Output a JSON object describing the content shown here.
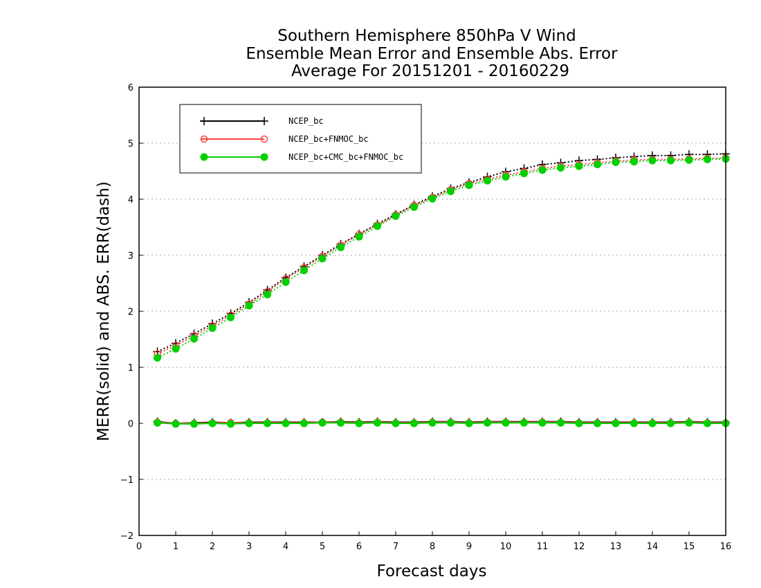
{
  "chart_data": {
    "type": "line",
    "title": [
      "Southern Hemisphere 850hPa V Wind",
      "Ensemble Mean Error and Ensemble Abs. Error",
      "Average For 20151201 - 20160229"
    ],
    "xlabel": "Forecast days",
    "ylabel": "MERR(solid) and ABS. ERR(dash)",
    "xlim": [
      0,
      16
    ],
    "ylim": [
      -2,
      6
    ],
    "xticks": [
      0,
      1,
      2,
      3,
      4,
      5,
      6,
      7,
      8,
      9,
      10,
      11,
      12,
      13,
      14,
      15,
      16
    ],
    "yticks": [
      -2,
      -1,
      0,
      1,
      2,
      3,
      4,
      5,
      6
    ],
    "y_gridlines": [
      -1,
      1,
      2,
      3,
      4,
      5
    ],
    "legend_position": "top-left",
    "x": [
      0.5,
      1,
      1.5,
      2,
      2.5,
      3,
      3.5,
      4,
      4.5,
      5,
      5.5,
      6,
      6.5,
      7,
      7.5,
      8,
      8.5,
      9,
      9.5,
      10,
      10.5,
      11,
      11.5,
      12,
      12.5,
      13,
      13.5,
      14,
      14.5,
      15,
      15.5,
      16
    ],
    "series": [
      {
        "name": "NCEP_bc",
        "color": "#000000",
        "marker": "plus",
        "merr": [
          0.03,
          0.0,
          0.01,
          0.02,
          0.01,
          0.02,
          0.02,
          0.02,
          0.02,
          0.02,
          0.03,
          0.02,
          0.03,
          0.02,
          0.02,
          0.03,
          0.03,
          0.02,
          0.03,
          0.03,
          0.03,
          0.03,
          0.03,
          0.02,
          0.02,
          0.02,
          0.02,
          0.02,
          0.02,
          0.03,
          0.02,
          0.02
        ],
        "abs_err": [
          1.28,
          1.43,
          1.6,
          1.78,
          1.96,
          2.16,
          2.38,
          2.6,
          2.8,
          3.0,
          3.2,
          3.38,
          3.56,
          3.73,
          3.9,
          4.05,
          4.19,
          4.3,
          4.4,
          4.49,
          4.55,
          4.62,
          4.65,
          4.69,
          4.71,
          4.74,
          4.76,
          4.78,
          4.78,
          4.8,
          4.8,
          4.81
        ]
      },
      {
        "name": "NCEP_bc+FNMOC_bc",
        "color": "#ff4040",
        "marker": "open-circle",
        "merr": [
          0.02,
          0.0,
          0.0,
          0.01,
          0.01,
          0.01,
          0.01,
          0.01,
          0.01,
          0.02,
          0.02,
          0.01,
          0.02,
          0.01,
          0.01,
          0.02,
          0.02,
          0.01,
          0.02,
          0.02,
          0.02,
          0.02,
          0.02,
          0.01,
          0.01,
          0.01,
          0.01,
          0.01,
          0.01,
          0.02,
          0.01,
          0.01
        ],
        "abs_err": [
          1.24,
          1.39,
          1.56,
          1.74,
          1.93,
          2.13,
          2.35,
          2.58,
          2.78,
          2.98,
          3.18,
          3.37,
          3.54,
          3.72,
          3.89,
          4.03,
          4.17,
          4.28,
          4.36,
          4.43,
          4.49,
          4.55,
          4.59,
          4.62,
          4.65,
          4.68,
          4.7,
          4.71,
          4.71,
          4.72,
          4.73,
          4.74
        ]
      },
      {
        "name": "NCEP_bc+CMC_bc+FNMOC_bc",
        "color": "#00d000",
        "marker": "filled-circle",
        "merr": [
          0.01,
          -0.01,
          -0.01,
          0.0,
          -0.01,
          0.0,
          0.0,
          0.0,
          0.0,
          0.01,
          0.01,
          0.0,
          0.01,
          0.0,
          0.0,
          0.01,
          0.01,
          0.0,
          0.01,
          0.01,
          0.01,
          0.01,
          0.01,
          0.0,
          0.0,
          0.0,
          0.0,
          0.0,
          0.0,
          0.01,
          0.0,
          0.0
        ],
        "abs_err": [
          1.17,
          1.33,
          1.51,
          1.7,
          1.89,
          2.1,
          2.3,
          2.52,
          2.73,
          2.94,
          3.14,
          3.33,
          3.52,
          3.7,
          3.86,
          4.01,
          4.14,
          4.25,
          4.33,
          4.4,
          4.46,
          4.52,
          4.56,
          4.59,
          4.62,
          4.66,
          4.67,
          4.69,
          4.69,
          4.7,
          4.71,
          4.72
        ]
      }
    ]
  }
}
